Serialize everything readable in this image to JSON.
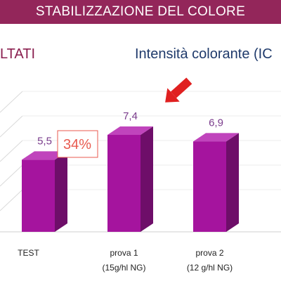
{
  "header": {
    "title": "STABILIZZAZIONE DEL COLORE"
  },
  "left_label": "LTATI",
  "colors": {
    "header_bg": "#93265a",
    "bar_front": "#a5149e",
    "bar_side": "#6e0e69",
    "bar_top": "#c044bc",
    "value_text": "#7a3c8c",
    "highlight": "#e85a4f",
    "arrow": "#e02020"
  },
  "chart_data": {
    "type": "bar",
    "title": "Intensità colorante (IC",
    "categories": [
      "TEST",
      "prova 1",
      "prova 2"
    ],
    "category_sublabels": [
      "",
      "(15g/hl NG)",
      "(12 g/hl NG)"
    ],
    "values": [
      5.5,
      7.4,
      6.9
    ],
    "value_labels": [
      "5,5",
      "7,4",
      "6,9"
    ],
    "annotation": "34%",
    "annotation_icon": "red-arrow-icon",
    "grid": true
  }
}
